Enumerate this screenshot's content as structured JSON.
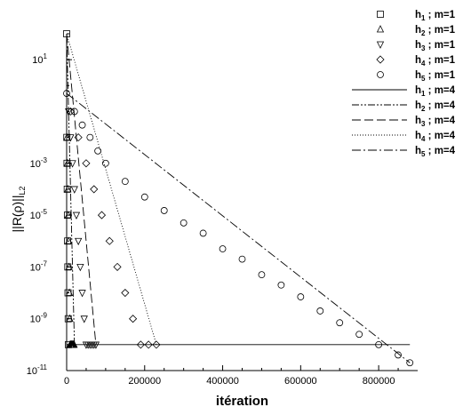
{
  "chart_data": {
    "type": "line",
    "xlabel": "itération",
    "ylabel": "||R(ρ)||",
    "ylabel_sub": "L2",
    "x_range": [
      0,
      900000
    ],
    "y_range_log10": [
      -11,
      2
    ],
    "y_scale": "log",
    "grid": false,
    "legend_position": "top-right",
    "x_ticks": [
      {
        "value": 0,
        "label": "0"
      },
      {
        "value": 200000,
        "label": "200000"
      },
      {
        "value": 400000,
        "label": "400000"
      },
      {
        "value": 600000,
        "label": "600000"
      },
      {
        "value": 800000,
        "label": "800000"
      }
    ],
    "y_ticks": [
      {
        "value": 10.0,
        "base": "10",
        "exp": "1"
      },
      {
        "value": 0.001,
        "base": "10",
        "exp": "-3"
      },
      {
        "value": 1e-05,
        "base": "10",
        "exp": "-5"
      },
      {
        "value": 1e-07,
        "base": "10",
        "exp": "-7"
      },
      {
        "value": 1e-09,
        "base": "10",
        "exp": "-9"
      },
      {
        "value": 1e-11,
        "base": "10",
        "exp": "-11"
      }
    ],
    "series": [
      {
        "name": "h1 ; m=1",
        "legend_label": {
          "h": "h",
          "sub": "1",
          "rest": " ; m=1"
        },
        "marker": "square",
        "x": [
          0,
          500,
          1000,
          1500,
          2000,
          2500,
          3000,
          3500,
          4000,
          4500
        ],
        "y": [
          100,
          0.01,
          0.001,
          0.0001,
          1e-05,
          1e-06,
          1e-07,
          1e-08,
          1e-09,
          1e-10
        ]
      },
      {
        "name": "h2 ; m=1",
        "legend_label": {
          "h": "h",
          "sub": "2",
          "rest": " ; m=1"
        },
        "marker": "triangle-up",
        "x": [
          1000,
          2000,
          3000,
          4000,
          5000,
          6000,
          7000,
          8000,
          9000,
          10000,
          11000,
          12000,
          13000,
          14000,
          15000,
          16000,
          17000,
          18000,
          19000
        ],
        "y": [
          0.01,
          0.001,
          0.0001,
          1e-05,
          1e-06,
          1e-07,
          1e-08,
          1e-09,
          1e-10,
          1e-10,
          1e-10,
          1e-10,
          1e-10,
          1e-10,
          1e-10,
          1e-10,
          1e-10,
          1e-10,
          1e-10
        ]
      },
      {
        "name": "h3 ; m=1",
        "legend_label": {
          "h": "h",
          "sub": "3",
          "rest": " ; m=1"
        },
        "marker": "triangle-down",
        "x": [
          5000,
          10000,
          15000,
          20000,
          25000,
          30000,
          35000,
          40000,
          45000,
          50000,
          55000,
          60000,
          65000,
          70000,
          75000
        ],
        "y": [
          0.1,
          0.01,
          0.001,
          0.0001,
          1e-05,
          1e-06,
          1e-07,
          1e-08,
          1e-09,
          1e-10,
          1e-10,
          1e-10,
          1e-10,
          1e-10,
          1e-10
        ]
      },
      {
        "name": "h4 ; m=1",
        "legend_label": {
          "h": "h",
          "sub": "4",
          "rest": " ; m=1"
        },
        "marker": "diamond",
        "x": [
          10000,
          30000,
          50000,
          70000,
          90000,
          110000,
          130000,
          150000,
          170000,
          190000,
          210000,
          230000
        ],
        "y": [
          0.1,
          0.01,
          0.001,
          0.0001,
          1e-05,
          1e-06,
          1e-07,
          1e-08,
          1e-09,
          1e-10,
          1e-10,
          1e-10
        ]
      },
      {
        "name": "h5 ; m=1",
        "legend_label": {
          "h": "h",
          "sub": "5",
          "rest": " ; m=1"
        },
        "marker": "circle",
        "x": [
          0,
          20000,
          40000,
          60000,
          80000,
          100000,
          150000,
          200000,
          250000,
          300000,
          350000,
          400000,
          450000,
          500000,
          550000,
          600000,
          650000,
          700000,
          750000,
          800000,
          850000,
          880000
        ],
        "y": [
          0.5,
          0.1,
          0.03,
          0.01,
          0.003,
          0.001,
          0.0002,
          5e-05,
          1.5e-05,
          5e-06,
          2e-06,
          5e-07,
          2e-07,
          5e-08,
          2e-08,
          7e-09,
          2e-09,
          7e-10,
          2.5e-10,
          1e-10,
          4e-11,
          2e-11
        ]
      },
      {
        "name": "h1 ; m=4",
        "legend_label": {
          "h": "h",
          "sub": "1",
          "rest": " ; m=4"
        },
        "dash": "",
        "x": [
          0,
          880000
        ],
        "y": [
          1e-10,
          1e-10
        ]
      },
      {
        "name": "h2 ; m=4",
        "legend_label": {
          "h": "h",
          "sub": "2",
          "rest": " ; m=4"
        },
        "dash": "8,2,2,2,2,2",
        "x": [
          0,
          20000
        ],
        "y": [
          100,
          1e-10
        ]
      },
      {
        "name": "h3 ; m=4",
        "legend_label": {
          "h": "h",
          "sub": "3",
          "rest": " ; m=4"
        },
        "dash": "10,4",
        "x": [
          0,
          75000
        ],
        "y": [
          100,
          1e-10
        ]
      },
      {
        "name": "h4 ; m=4",
        "legend_label": {
          "h": "h",
          "sub": "4",
          "rest": " ; m=4"
        },
        "dash": "1,2",
        "x": [
          0,
          230000
        ],
        "y": [
          100,
          1e-10
        ]
      },
      {
        "name": "h5 ; m=4",
        "legend_label": {
          "h": "h",
          "sub": "5",
          "rest": " ; m=4"
        },
        "dash": "10,3,2,3",
        "x": [
          0,
          880000
        ],
        "y": [
          0.5,
          2e-11
        ]
      }
    ]
  }
}
